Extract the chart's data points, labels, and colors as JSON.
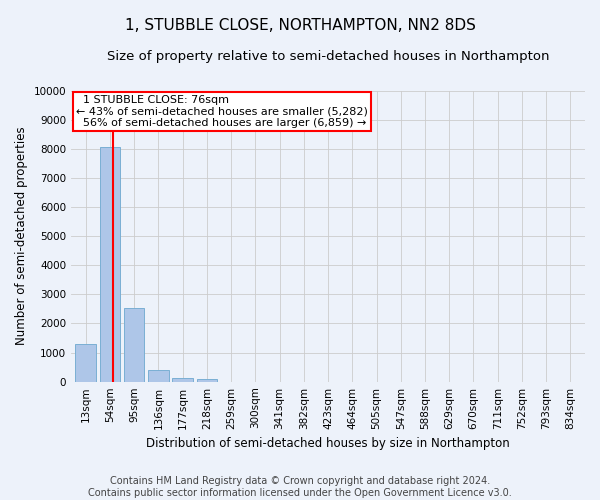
{
  "title": "1, STUBBLE CLOSE, NORTHAMPTON, NN2 8DS",
  "subtitle": "Size of property relative to semi-detached houses in Northampton",
  "xlabel": "Distribution of semi-detached houses by size in Northampton",
  "ylabel": "Number of semi-detached properties",
  "footer_line1": "Contains HM Land Registry data © Crown copyright and database right 2024.",
  "footer_line2": "Contains public sector information licensed under the Open Government Licence v3.0.",
  "categories": [
    "13sqm",
    "54sqm",
    "95sqm",
    "136sqm",
    "177sqm",
    "218sqm",
    "259sqm",
    "300sqm",
    "341sqm",
    "382sqm",
    "423sqm",
    "464sqm",
    "505sqm",
    "547sqm",
    "588sqm",
    "629sqm",
    "670sqm",
    "711sqm",
    "752sqm",
    "793sqm",
    "834sqm"
  ],
  "values": [
    1300,
    8050,
    2530,
    390,
    140,
    100,
    0,
    0,
    0,
    0,
    0,
    0,
    0,
    0,
    0,
    0,
    0,
    0,
    0,
    0,
    0
  ],
  "bar_color": "#aec6e8",
  "bar_edge_color": "#7aafd4",
  "property_line_x": 1.15,
  "property_label": "1 STUBBLE CLOSE: 76sqm",
  "pct_smaller": 43,
  "count_smaller": 5282,
  "pct_larger": 56,
  "count_larger": 6859,
  "line_color": "red",
  "annotation_box_color": "white",
  "annotation_box_edge": "red",
  "ylim": [
    0,
    10000
  ],
  "yticks": [
    0,
    1000,
    2000,
    3000,
    4000,
    5000,
    6000,
    7000,
    8000,
    9000,
    10000
  ],
  "grid_color": "#cccccc",
  "bg_color": "#edf2fa",
  "title_fontsize": 11,
  "subtitle_fontsize": 9.5,
  "axis_label_fontsize": 8.5,
  "tick_fontsize": 7.5,
  "footer_fontsize": 7,
  "annotation_fontsize": 8
}
